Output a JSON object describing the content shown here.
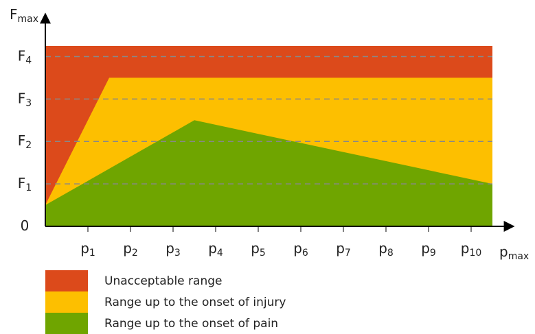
{
  "chart_data": {
    "type": "area",
    "x_label": "pmax",
    "y_label": "Fmax",
    "xlim": [
      0,
      10.5
    ],
    "ylim": [
      0,
      4.25
    ],
    "xticks": [
      {
        "value": 1,
        "label": "p1"
      },
      {
        "value": 2,
        "label": "p2"
      },
      {
        "value": 3,
        "label": "p3"
      },
      {
        "value": 4,
        "label": "p4"
      },
      {
        "value": 5,
        "label": "p5"
      },
      {
        "value": 6,
        "label": "p6"
      },
      {
        "value": 7,
        "label": "p7"
      },
      {
        "value": 8,
        "label": "p8"
      },
      {
        "value": 9,
        "label": "p9"
      },
      {
        "value": 10,
        "label": "p10"
      }
    ],
    "yticks": [
      0,
      {
        "value": 1,
        "label": "F1"
      },
      {
        "value": 2,
        "label": "F2"
      },
      {
        "value": 3,
        "label": "F3"
      },
      {
        "value": 4,
        "label": "F4"
      }
    ],
    "grid": true,
    "series": [
      {
        "name": "Unacceptable range",
        "color": "#dc4a1b",
        "x": [
          0,
          10.5
        ],
        "values": [
          4.25,
          4.25
        ]
      },
      {
        "name": "Range up to the onset of injury",
        "color": "#fdbf00",
        "x": [
          0,
          1.5,
          10.5
        ],
        "values": [
          0.5,
          3.5,
          3.5
        ]
      },
      {
        "name": "Range up to the onset of pain",
        "color": "#6fa500",
        "x": [
          0,
          3.5,
          10.5
        ],
        "values": [
          0.5,
          2.5,
          1
        ]
      }
    ]
  }
}
